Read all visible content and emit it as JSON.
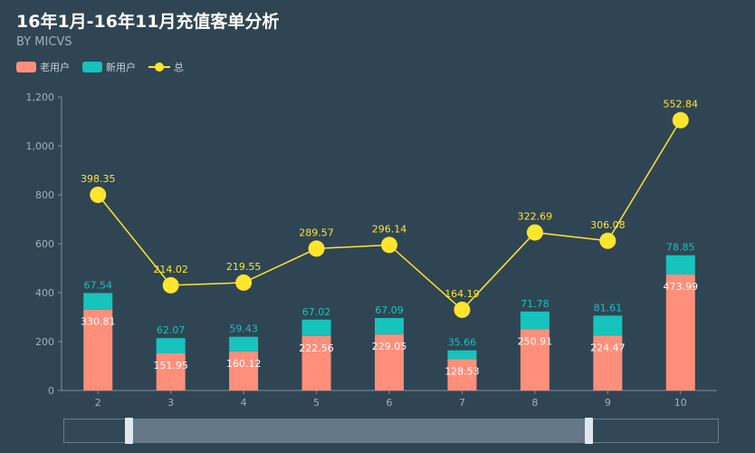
{
  "title": "16年1月-16年11月充值客单分析",
  "subtitle": "BY MICVS",
  "legend": [
    {
      "label": "老用户",
      "color": "#ff8f7a",
      "kind": "bar"
    },
    {
      "label": "新用户",
      "color": "#16c3bd",
      "kind": "bar"
    },
    {
      "label": "总",
      "color": "#ffe52e",
      "kind": "line"
    }
  ],
  "chart_data": {
    "type": "bar",
    "categories": [
      "2",
      "3",
      "4",
      "5",
      "6",
      "7",
      "8",
      "9",
      "10"
    ],
    "ylim": [
      0,
      1200
    ],
    "yticks": [
      "0",
      "200",
      "400",
      "600",
      "800",
      "1,000",
      "1,200"
    ],
    "ytick_values": [
      0,
      200,
      400,
      600,
      800,
      1000,
      1200
    ],
    "grid": false,
    "legend_position": "top-left",
    "series": [
      {
        "name": "老用户",
        "type": "bar",
        "stack": true,
        "color": "#ff8f7a",
        "label_color": "#ffffff",
        "values": [
          330.81,
          151.95,
          160.12,
          222.56,
          229.05,
          128.53,
          250.91,
          224.47,
          473.99
        ],
        "labels": [
          "330.81",
          "151.95",
          "160.12",
          "222.56",
          "229.05",
          "128.53",
          "250.91",
          "224.47",
          "473.99"
        ]
      },
      {
        "name": "新用户",
        "type": "bar",
        "stack": true,
        "color": "#16c3bd",
        "label_color": "#16c3bd",
        "values": [
          67.54,
          62.07,
          59.43,
          67.02,
          67.09,
          35.66,
          71.78,
          81.61,
          78.85
        ],
        "labels": [
          "67.54",
          "62.07",
          "59.43",
          "67.02",
          "67.09",
          "35.66",
          "71.78",
          "81.61",
          "78.85"
        ]
      },
      {
        "name": "总",
        "type": "line",
        "color": "#ffe52e",
        "label_color": "#ffe52e",
        "values": [
          398.35,
          214.02,
          219.55,
          289.57,
          296.14,
          164.19,
          322.69,
          306.08,
          552.84
        ],
        "plotted_values": [
          800,
          430,
          441,
          580,
          595,
          330,
          646,
          612,
          1105
        ],
        "labels": [
          "398.35",
          "214.02",
          "219.55",
          "289.57",
          "296.14",
          "164.19",
          "322.69",
          "306.08",
          "552.84"
        ]
      }
    ]
  },
  "zoom": {
    "start": 0.1,
    "end": 0.8
  }
}
